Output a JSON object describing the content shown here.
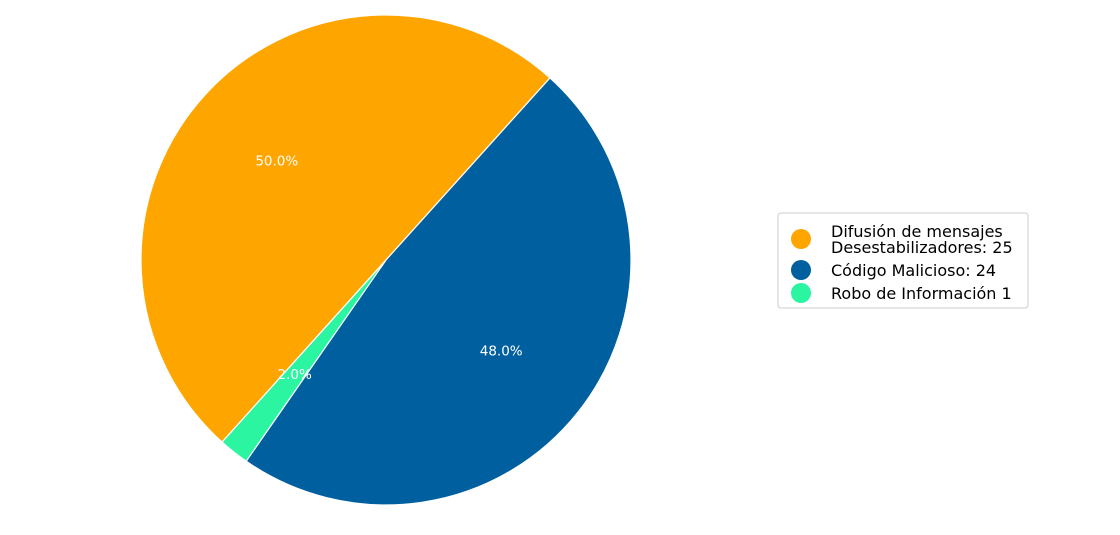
{
  "chart_data": {
    "type": "pie",
    "slices": [
      {
        "legend_label": "Difusión de mensajes\nDesestabilizadores: 25",
        "value": 25,
        "percent_label": "50.0%",
        "color": "#FFA500"
      },
      {
        "legend_label": "Código Malicioso: 24",
        "value": 24,
        "percent_label": "48.0%",
        "color": "#005F9E"
      },
      {
        "legend_label": "Robo de Información 1",
        "value": 1,
        "percent_label": "2.0%",
        "color": "#2CF5A2"
      }
    ],
    "start_angle_deg": 228,
    "direction": "clockwise",
    "legend_position": "right"
  }
}
